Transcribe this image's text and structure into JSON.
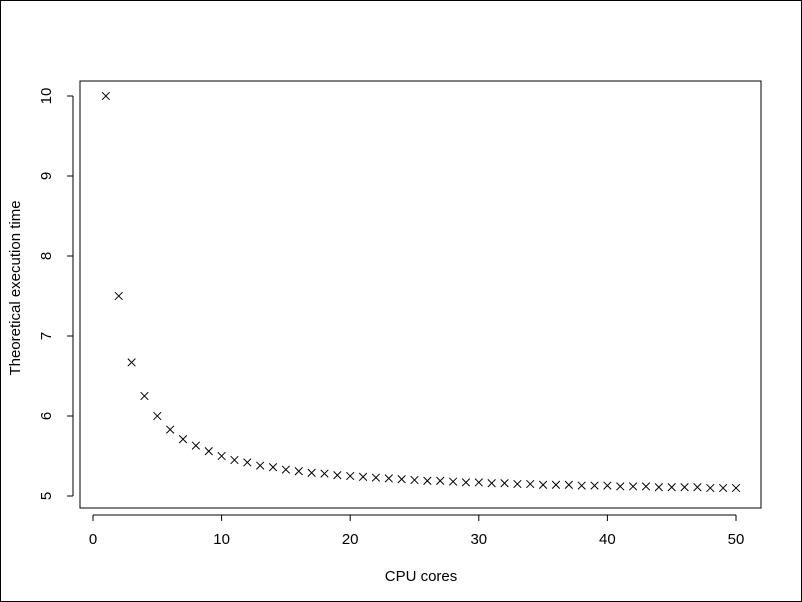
{
  "chart_data": {
    "type": "scatter",
    "xlabel": "CPU cores",
    "ylabel": "Theoretical execution time",
    "xlim": [
      0,
      51
    ],
    "ylim": [
      5,
      10.2
    ],
    "x_ticks": [
      0,
      10,
      20,
      30,
      40,
      50
    ],
    "y_ticks": [
      5,
      6,
      7,
      8,
      9,
      10
    ],
    "x_tick_labels": [
      "0",
      "10",
      "20",
      "30",
      "40",
      "50"
    ],
    "y_tick_labels": [
      "5",
      "6",
      "7",
      "8",
      "9",
      "10"
    ],
    "marker": "x",
    "grid": false,
    "series": [
      {
        "x": [
          1,
          2,
          3,
          4,
          5,
          6,
          7,
          8,
          9,
          10,
          11,
          12,
          13,
          14,
          15,
          16,
          17,
          18,
          19,
          20,
          21,
          22,
          23,
          24,
          25,
          26,
          27,
          28,
          29,
          30,
          31,
          32,
          33,
          34,
          35,
          36,
          37,
          38,
          39,
          40,
          41,
          42,
          43,
          44,
          45,
          46,
          47,
          48,
          49,
          50
        ],
        "y": [
          10,
          7.5,
          6.67,
          6.25,
          6,
          5.83,
          5.71,
          5.63,
          5.56,
          5.5,
          5.45,
          5.42,
          5.38,
          5.36,
          5.33,
          5.31,
          5.29,
          5.28,
          5.26,
          5.25,
          5.24,
          5.23,
          5.22,
          5.21,
          5.2,
          5.19,
          5.19,
          5.18,
          5.17,
          5.17,
          5.16,
          5.16,
          5.15,
          5.15,
          5.14,
          5.14,
          5.14,
          5.13,
          5.13,
          5.13,
          5.12,
          5.12,
          5.12,
          5.11,
          5.11,
          5.11,
          5.11,
          5.1,
          5.1,
          5.1
        ]
      }
    ]
  }
}
